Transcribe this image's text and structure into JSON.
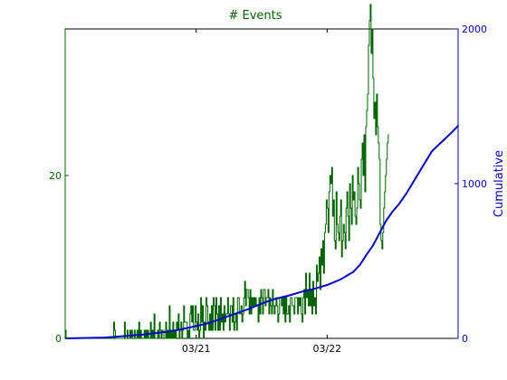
{
  "chart_data": {
    "type": "line",
    "title": "# Events",
    "xlabel": "",
    "ylabel_left": "",
    "ylabel_right": "Cumulative",
    "xlim_days_from_mar20": [
      0,
      3.0
    ],
    "x_ticks": [
      {
        "label": "03/21",
        "at_day": 1.0
      },
      {
        "label": "03/22",
        "at_day": 2.0
      }
    ],
    "y_left_lim": [
      0,
      38
    ],
    "y_left_ticks": [
      0,
      20
    ],
    "y_right_lim": [
      0,
      2000
    ],
    "y_right_ticks": [
      0,
      1000,
      2000
    ],
    "grid": false,
    "colors": {
      "events": "#006400",
      "cumulative": "#0000cd",
      "left_axis_text": "#006400",
      "right_axis_text": "#0000cd",
      "title": "#006400"
    },
    "series": [
      {
        "name": "# Events",
        "style": "step",
        "axis": "left",
        "values": [
          1,
          0,
          0,
          0,
          0,
          0,
          0,
          0,
          0,
          0,
          0,
          0,
          0,
          0,
          0,
          0,
          0,
          0,
          0,
          0,
          0,
          0,
          0,
          0,
          0,
          0,
          0,
          0,
          0,
          0,
          0,
          0,
          0,
          0,
          0,
          0,
          0,
          0,
          0,
          0,
          0,
          0,
          0,
          0,
          0,
          0,
          0,
          0,
          0,
          0,
          0,
          0,
          0,
          0,
          2,
          1,
          0,
          0,
          0,
          0,
          0,
          0,
          0,
          0,
          0,
          0,
          2,
          0,
          0,
          1,
          0,
          0,
          1,
          0,
          1,
          0,
          0,
          1,
          0,
          0,
          1,
          0,
          2,
          0,
          1,
          0,
          0,
          0,
          1,
          0,
          1,
          0,
          1,
          0,
          0,
          2,
          0,
          1,
          0,
          3,
          0,
          0,
          0,
          1,
          0,
          2,
          1,
          0,
          1,
          1,
          0,
          0,
          2,
          0,
          1,
          0,
          4,
          0,
          1,
          0,
          2,
          0,
          1,
          0,
          2,
          1,
          3,
          0,
          1,
          2,
          0,
          1,
          4,
          2,
          2,
          2,
          0,
          1,
          0,
          3,
          4,
          2,
          4,
          1,
          1,
          4,
          2,
          1,
          3,
          0,
          1,
          5,
          2,
          4,
          0,
          2,
          1,
          5,
          4,
          2,
          1,
          3,
          1,
          4,
          1,
          5,
          4,
          1,
          5,
          3,
          1,
          4,
          1,
          5,
          2,
          3,
          1,
          4,
          2,
          3,
          3,
          5,
          3,
          1,
          4,
          4,
          2,
          5,
          1,
          2,
          3,
          1,
          5,
          5,
          3,
          3,
          4,
          2,
          3,
          5,
          7,
          4,
          6,
          6,
          5,
          3,
          6,
          3,
          5,
          4,
          5,
          4,
          5,
          4,
          4,
          2,
          5,
          3,
          6,
          5,
          3,
          6,
          6,
          4,
          5,
          5,
          6,
          3,
          5,
          4,
          3,
          6,
          4,
          3,
          4,
          5,
          4,
          2,
          3,
          5,
          5,
          4,
          5,
          3,
          5,
          2,
          5,
          3,
          3,
          4,
          2,
          5,
          5,
          4,
          4,
          3,
          5,
          5,
          5,
          3,
          5,
          4,
          5,
          3,
          2,
          5,
          6,
          3,
          8,
          5,
          6,
          4,
          8,
          4,
          6,
          3,
          7,
          4,
          5,
          3,
          9,
          7,
          8,
          10,
          6,
          11,
          9,
          12,
          8,
          13,
          14,
          17,
          16,
          13,
          18,
          20,
          19,
          21,
          15,
          17,
          12,
          11,
          18,
          14,
          13,
          12,
          15,
          17,
          10,
          12,
          14,
          13,
          11,
          16,
          18,
          15,
          12,
          19,
          16,
          14,
          20,
          17,
          18,
          15,
          14,
          16,
          21,
          19,
          17,
          16,
          22,
          24,
          20,
          25,
          18,
          26,
          28,
          30,
          36,
          39,
          41,
          35,
          38,
          32,
          27,
          29,
          25,
          30,
          26,
          24,
          22,
          14,
          12,
          11,
          13,
          16,
          18,
          20,
          22,
          24,
          25
        ],
        "x_start_day": 0.0,
        "x_step_day": 0.00685
      },
      {
        "name": "Cumulative",
        "style": "line",
        "axis": "right",
        "points": [
          [
            0.0,
            0
          ],
          [
            0.3,
            5
          ],
          [
            0.6,
            25
          ],
          [
            0.8,
            45
          ],
          [
            0.95,
            70
          ],
          [
            1.1,
            100
          ],
          [
            1.2,
            130
          ],
          [
            1.3,
            160
          ],
          [
            1.4,
            190
          ],
          [
            1.5,
            225
          ],
          [
            1.6,
            255
          ],
          [
            1.7,
            275
          ],
          [
            1.8,
            300
          ],
          [
            1.9,
            320
          ],
          [
            2.0,
            345
          ],
          [
            2.1,
            380
          ],
          [
            2.2,
            430
          ],
          [
            2.25,
            475
          ],
          [
            2.3,
            540
          ],
          [
            2.35,
            600
          ],
          [
            2.4,
            680
          ],
          [
            2.45,
            760
          ],
          [
            2.5,
            820
          ],
          [
            2.55,
            870
          ],
          [
            2.6,
            930
          ],
          [
            2.65,
            1000
          ],
          [
            2.7,
            1070
          ],
          [
            2.75,
            1140
          ],
          [
            2.8,
            1210
          ],
          [
            2.85,
            1250
          ],
          [
            2.9,
            1290
          ],
          [
            2.95,
            1330
          ],
          [
            3.0,
            1375
          ]
        ]
      }
    ]
  }
}
